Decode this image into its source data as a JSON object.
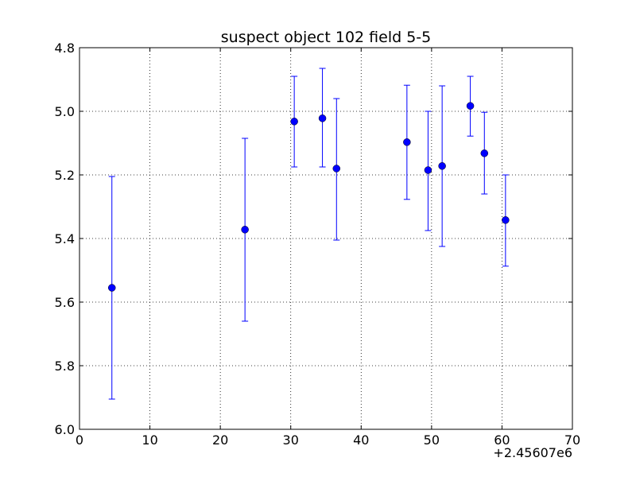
{
  "chart_data": {
    "type": "scatter",
    "title": "suspect object 102 field 5-5",
    "xlabel": "",
    "ylabel": "",
    "x_offset_label": "+2.45607e6",
    "xlim": [
      0,
      70
    ],
    "ylim": [
      4.8,
      6.0
    ],
    "y_inverted": true,
    "grid": true,
    "x_ticks": [
      "0",
      "10",
      "20",
      "30",
      "40",
      "50",
      "60",
      "70"
    ],
    "y_ticks": [
      "4.8",
      "5.0",
      "5.2",
      "5.4",
      "5.6",
      "5.8",
      "6.0"
    ],
    "series": [
      {
        "color": "#0000ff",
        "points": [
          {
            "x": 4.6,
            "y": 5.555,
            "lo": 5.205,
            "hi": 5.905
          },
          {
            "x": 23.5,
            "y": 5.372,
            "lo": 5.085,
            "hi": 5.66
          },
          {
            "x": 30.5,
            "y": 5.032,
            "lo": 4.89,
            "hi": 5.175
          },
          {
            "x": 34.5,
            "y": 5.022,
            "lo": 4.865,
            "hi": 5.175
          },
          {
            "x": 36.5,
            "y": 5.18,
            "lo": 4.96,
            "hi": 5.405
          },
          {
            "x": 46.5,
            "y": 5.097,
            "lo": 4.918,
            "hi": 5.277
          },
          {
            "x": 49.5,
            "y": 5.185,
            "lo": 5.0,
            "hi": 5.375
          },
          {
            "x": 51.5,
            "y": 5.172,
            "lo": 4.92,
            "hi": 5.425
          },
          {
            "x": 55.5,
            "y": 4.983,
            "lo": 4.89,
            "hi": 5.078
          },
          {
            "x": 57.5,
            "y": 5.132,
            "lo": 5.003,
            "hi": 5.26
          },
          {
            "x": 60.5,
            "y": 5.342,
            "lo": 5.2,
            "hi": 5.487
          }
        ]
      }
    ]
  }
}
